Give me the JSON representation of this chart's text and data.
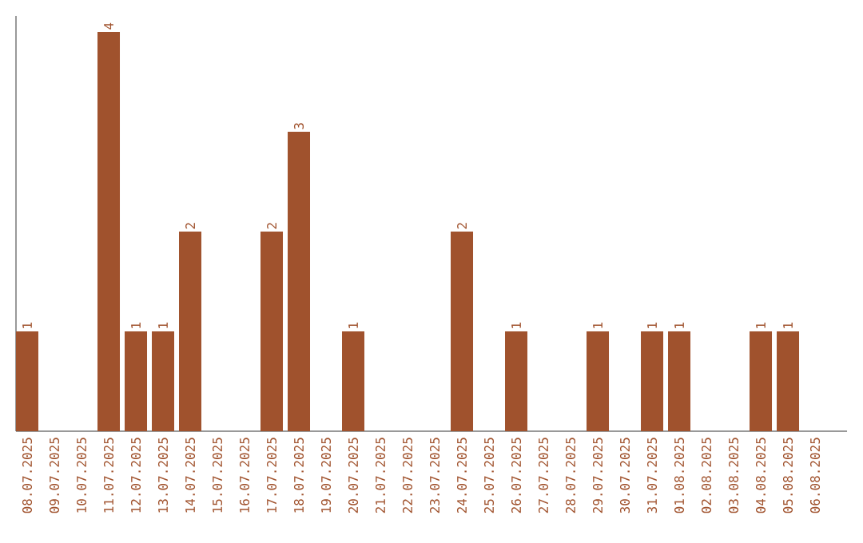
{
  "chart_data": {
    "type": "bar",
    "categories": [
      "08.07.2025",
      "09.07.2025",
      "10.07.2025",
      "11.07.2025",
      "12.07.2025",
      "13.07.2025",
      "14.07.2025",
      "15.07.2025",
      "16.07.2025",
      "17.07.2025",
      "18.07.2025",
      "19.07.2025",
      "20.07.2025",
      "21.07.2025",
      "22.07.2025",
      "23.07.2025",
      "24.07.2025",
      "25.07.2025",
      "26.07.2025",
      "27.07.2025",
      "28.07.2025",
      "29.07.2025",
      "30.07.2025",
      "31.07.2025",
      "01.08.2025",
      "02.08.2025",
      "03.08.2025",
      "04.08.2025",
      "05.08.2025",
      "06.08.2025"
    ],
    "values": [
      1,
      0,
      0,
      4,
      1,
      1,
      2,
      0,
      0,
      2,
      3,
      0,
      1,
      0,
      0,
      0,
      2,
      0,
      1,
      0,
      0,
      1,
      0,
      1,
      1,
      0,
      0,
      1,
      1,
      0
    ],
    "color": "#a0522d",
    "value_labels": [
      "1",
      null,
      null,
      "4",
      "1",
      "1",
      "2",
      null,
      null,
      "2",
      "3",
      null,
      "1",
      null,
      null,
      null,
      "2",
      null,
      "1",
      null,
      null,
      "1",
      null,
      "1",
      "1",
      null,
      null,
      "1",
      "1",
      null
    ]
  }
}
